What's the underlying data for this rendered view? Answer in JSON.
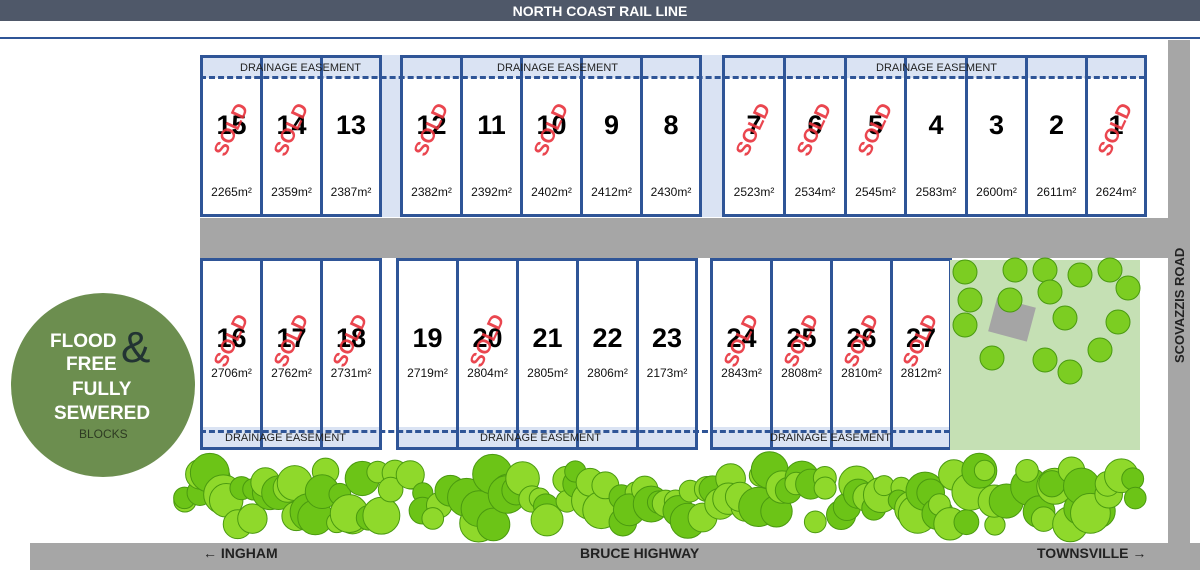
{
  "header": {
    "title": "NORTH COAST RAIL LINE"
  },
  "easement_label": "DRAINAGE EASEMENT",
  "sold_label": "SOLD",
  "top_lots": [
    {
      "n": "15",
      "area": "2265m²",
      "sold": true
    },
    {
      "n": "14",
      "area": "2359m²",
      "sold": true
    },
    {
      "n": "13",
      "area": "2387m²",
      "sold": false
    },
    {
      "n": "12",
      "area": "2382m²",
      "sold": true
    },
    {
      "n": "11",
      "area": "2392m²",
      "sold": false
    },
    {
      "n": "10",
      "area": "2402m²",
      "sold": true
    },
    {
      "n": "9",
      "area": "2412m²",
      "sold": false
    },
    {
      "n": "8",
      "area": "2430m²",
      "sold": false
    },
    {
      "n": "7",
      "area": "2523m²",
      "sold": true
    },
    {
      "n": "6",
      "area": "2534m²",
      "sold": true
    },
    {
      "n": "5",
      "area": "2545m²",
      "sold": true
    },
    {
      "n": "4",
      "area": "2583m²",
      "sold": false
    },
    {
      "n": "3",
      "area": "2600m²",
      "sold": false
    },
    {
      "n": "2",
      "area": "2611m²",
      "sold": false
    },
    {
      "n": "1",
      "area": "2624m²",
      "sold": true
    }
  ],
  "bottom_lots": [
    {
      "n": "16",
      "area": "2706m²",
      "sold": true
    },
    {
      "n": "17",
      "area": "2762m²",
      "sold": true
    },
    {
      "n": "18",
      "area": "2731m²",
      "sold": true
    },
    {
      "n": "19",
      "area": "2719m²",
      "sold": false
    },
    {
      "n": "20",
      "area": "2804m²",
      "sold": true
    },
    {
      "n": "21",
      "area": "2805m²",
      "sold": false
    },
    {
      "n": "22",
      "area": "2806m²",
      "sold": false
    },
    {
      "n": "23",
      "area": "2173m²",
      "sold": false
    },
    {
      "n": "24",
      "area": "2843m²",
      "sold": true
    },
    {
      "n": "25",
      "area": "2808m²",
      "sold": true
    },
    {
      "n": "26",
      "area": "2810m²",
      "sold": true
    },
    {
      "n": "27",
      "area": "2812m²",
      "sold": true
    }
  ],
  "badge": {
    "line1": "FLOOD",
    "amp": "&",
    "line2": "FREE",
    "line3": "FULLY",
    "line4": "SEWERED",
    "line5": "BLOCKS"
  },
  "roads": {
    "side": "SCOVAZZIS ROAD",
    "highway": "BRUCE HIGHWAY",
    "left": "← INGHAM",
    "right": "TOWNSVILLE →"
  },
  "colors": {
    "lot_border": "#2f5597",
    "sold": "#e8323c",
    "badge": "#6c8e4f",
    "park": "#c5e0b4"
  }
}
